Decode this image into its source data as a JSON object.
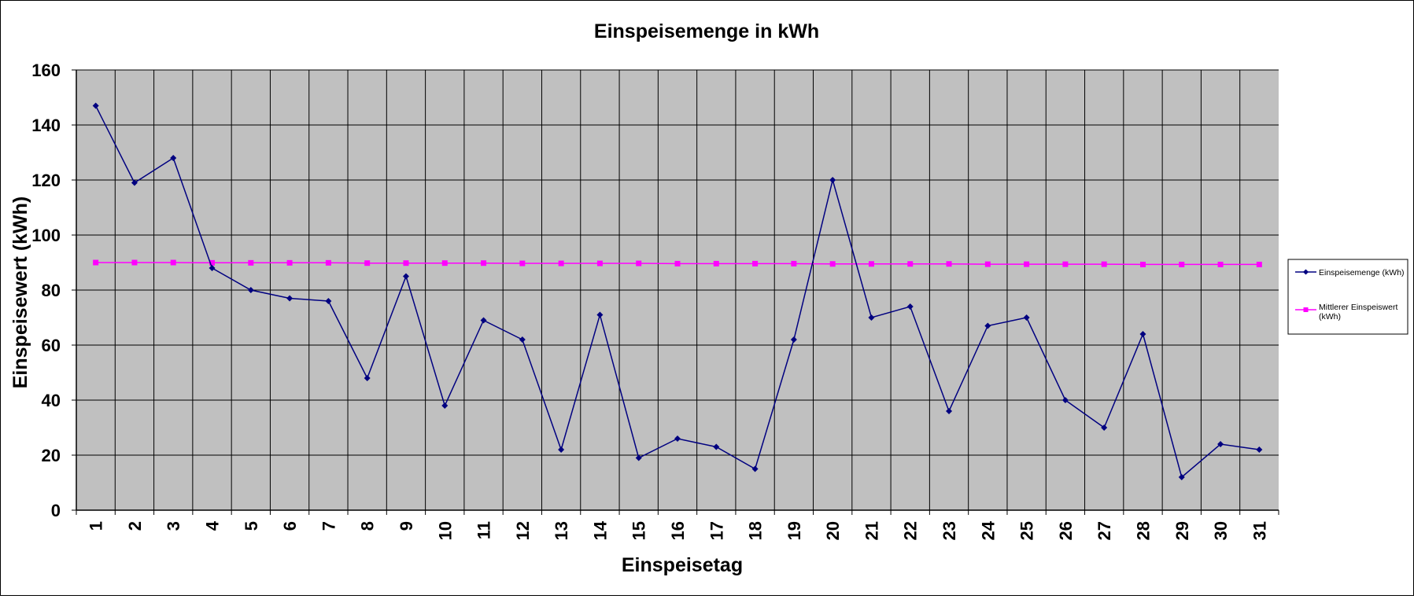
{
  "chart_data": {
    "type": "line",
    "title": "Einspeisemenge in kWh",
    "xlabel": "Einspeisetag",
    "ylabel": "Einspeisewert  (kWh)",
    "ylim": [
      0,
      160
    ],
    "yticks": [
      0,
      20,
      40,
      60,
      80,
      100,
      120,
      140,
      160
    ],
    "grid": true,
    "legend_position": "right",
    "categories": [
      "1",
      "2",
      "3",
      "4",
      "5",
      "6",
      "7",
      "8",
      "9",
      "10",
      "11",
      "12",
      "13",
      "14",
      "15",
      "16",
      "17",
      "18",
      "19",
      "20",
      "21",
      "22",
      "23",
      "24",
      "25",
      "26",
      "27",
      "28",
      "29",
      "30",
      "31"
    ],
    "series": [
      {
        "name": "Einspeisemenge (kWh)",
        "color": "#000080",
        "marker": "diamond",
        "values": [
          147,
          119,
          128,
          88,
          80,
          77,
          76,
          48,
          85,
          38,
          69,
          62,
          22,
          71,
          19,
          26,
          23,
          15,
          62,
          120,
          70,
          74,
          36,
          67,
          70,
          40,
          30,
          64,
          12,
          24,
          22
        ]
      },
      {
        "name": "Mittlerer Einspeiswert (kWh)",
        "color": "#ff00ff",
        "marker": "square",
        "values": [
          90.0,
          90.0,
          90.0,
          89.9,
          89.9,
          89.9,
          89.9,
          89.8,
          89.8,
          89.8,
          89.8,
          89.7,
          89.7,
          89.7,
          89.7,
          89.6,
          89.6,
          89.6,
          89.6,
          89.5,
          89.5,
          89.5,
          89.5,
          89.4,
          89.4,
          89.4,
          89.4,
          89.3,
          89.3,
          89.3,
          89.3
        ]
      }
    ],
    "plot_background": "#c0c0c0",
    "grid_color": "#000000"
  }
}
